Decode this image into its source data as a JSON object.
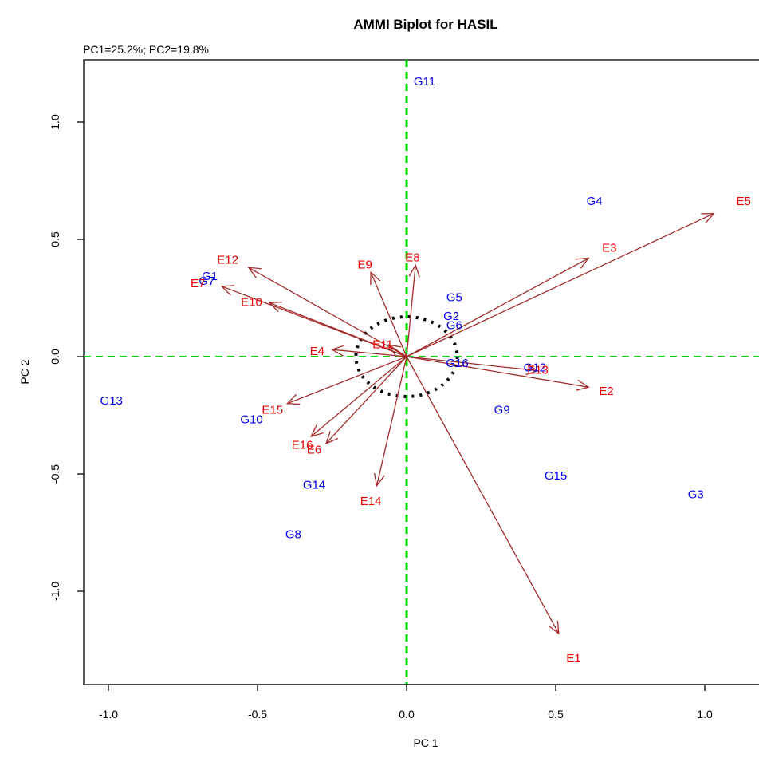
{
  "chart_data": {
    "type": "scatter",
    "title": "AMMI Biplot for HASIL",
    "subtitle": "PC1=25.2%; PC2=19.8%",
    "xlabel": "PC 1",
    "ylabel": "PC 2",
    "xlim": [
      -1.09,
      1.18
    ],
    "ylim": [
      -1.39,
      1.25
    ],
    "xticks": [
      -1.0,
      -0.5,
      0.0,
      0.5,
      1.0
    ],
    "xtick_labels": [
      "-1.0",
      "-0.5",
      "0.0",
      "0.5",
      "1.0"
    ],
    "yticks": [
      -1.0,
      -0.5,
      0.0,
      0.5,
      1.0
    ],
    "ytick_labels": [
      "-1.0",
      "-0.5",
      "0.0",
      "0.5",
      "1.0"
    ],
    "grid": false,
    "reference_lines": {
      "x0": 0,
      "y0": 0,
      "color": "#00dd00"
    },
    "circle_radius": 0.17,
    "colors": {
      "genotype": "#0000ee",
      "environment": "#ee0000",
      "arrow": "#a52a2a",
      "circle": "#000000"
    },
    "genotypes": [
      {
        "name": "G1",
        "x": -0.66,
        "y": 0.34
      },
      {
        "name": "G2",
        "x": 0.15,
        "y": 0.17
      },
      {
        "name": "G3",
        "x": 0.97,
        "y": -0.59
      },
      {
        "name": "G4",
        "x": 0.63,
        "y": 0.66
      },
      {
        "name": "G5",
        "x": 0.16,
        "y": 0.25
      },
      {
        "name": "G6",
        "x": 0.16,
        "y": 0.13
      },
      {
        "name": "G7",
        "x": -0.67,
        "y": 0.32
      },
      {
        "name": "G8",
        "x": -0.38,
        "y": -0.76
      },
      {
        "name": "G9",
        "x": 0.32,
        "y": -0.23
      },
      {
        "name": "G10",
        "x": -0.52,
        "y": -0.27
      },
      {
        "name": "G11",
        "x": 0.06,
        "y": 1.17
      },
      {
        "name": "G12",
        "x": 0.43,
        "y": -0.05
      },
      {
        "name": "G13",
        "x": -0.99,
        "y": -0.19
      },
      {
        "name": "G14",
        "x": -0.31,
        "y": -0.55
      },
      {
        "name": "G15",
        "x": 0.5,
        "y": -0.51
      },
      {
        "name": "G16",
        "x": 0.17,
        "y": -0.03
      }
    ],
    "environments": [
      {
        "name": "E1",
        "x": 0.51,
        "y": -1.18,
        "label_x": 0.56,
        "label_y": -1.29
      },
      {
        "name": "E2",
        "x": 0.61,
        "y": -0.13,
        "label_x": 0.67,
        "label_y": -0.15
      },
      {
        "name": "E3",
        "x": 0.61,
        "y": 0.42,
        "label_x": 0.68,
        "label_y": 0.46
      },
      {
        "name": "E4",
        "x": -0.25,
        "y": 0.03,
        "label_x": -0.3,
        "label_y": 0.02
      },
      {
        "name": "E5",
        "x": 1.03,
        "y": 0.61,
        "label_x": 1.13,
        "label_y": 0.66
      },
      {
        "name": "E6",
        "x": -0.27,
        "y": -0.37,
        "label_x": -0.31,
        "label_y": -0.4
      },
      {
        "name": "E7",
        "x": -0.62,
        "y": 0.3,
        "label_x": -0.7,
        "label_y": 0.31
      },
      {
        "name": "E8",
        "x": 0.03,
        "y": 0.39,
        "label_x": 0.02,
        "label_y": 0.42
      },
      {
        "name": "E9",
        "x": -0.12,
        "y": 0.36,
        "label_x": -0.14,
        "label_y": 0.39
      },
      {
        "name": "E10",
        "x": -0.46,
        "y": 0.23,
        "label_x": -0.52,
        "label_y": 0.23
      },
      {
        "name": "E11",
        "x": -0.06,
        "y": 0.05,
        "label_x": -0.08,
        "label_y": 0.05
      },
      {
        "name": "E12",
        "x": -0.53,
        "y": 0.38,
        "label_x": -0.6,
        "label_y": 0.41
      },
      {
        "name": "E13",
        "x": 0.44,
        "y": -0.06,
        "label_x": 0.44,
        "label_y": -0.06
      },
      {
        "name": "E14",
        "x": -0.1,
        "y": -0.55,
        "label_x": -0.12,
        "label_y": -0.62
      },
      {
        "name": "E15",
        "x": -0.4,
        "y": -0.2,
        "label_x": -0.45,
        "label_y": -0.23
      },
      {
        "name": "E16",
        "x": -0.32,
        "y": -0.34,
        "label_x": -0.35,
        "label_y": -0.38
      }
    ]
  }
}
